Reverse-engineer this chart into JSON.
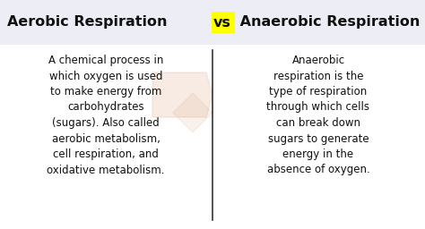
{
  "bg_color": "#ffffff",
  "header_bg": "#ecedf5",
  "title_left": "Aerobic Respiration",
  "title_vs": "vs",
  "title_right": " Anaerobic Respiration",
  "vs_bg": "#ffff00",
  "left_text": "A chemical process in\nwhich oxygen is used\nto make energy from\ncarbohydrates\n(sugars). Also called\naerobic metabolism,\ncell respiration, and\noxidative metabolism.",
  "right_text": "Anaerobic\nrespiration is the\ntype of respiration\nthrough which cells\ncan break down\nsugars to generate\nenergy in the\nabsence of oxygen.",
  "divider_color": "#333333",
  "title_fontsize": 11.5,
  "body_fontsize": 8.5,
  "title_color": "#111111",
  "body_color": "#111111",
  "vs_fontsize": 11.5,
  "watermark_alpha": 0.18
}
